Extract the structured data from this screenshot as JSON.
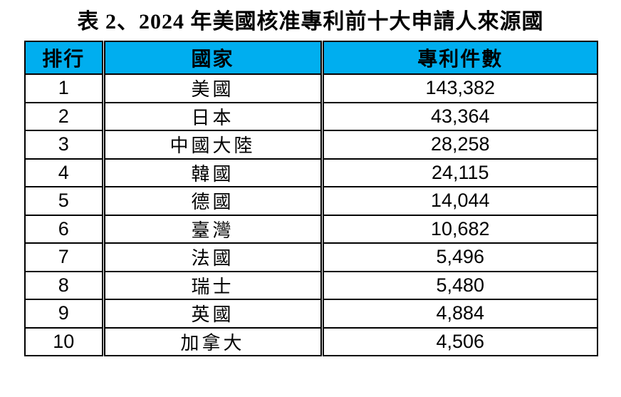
{
  "title": "表 2、2024 年美國核准專利前十大申請人來源國",
  "colors": {
    "header_bg": "#00AEEF",
    "border": "#000000",
    "text": "#000000"
  },
  "table": {
    "headers": {
      "rank": "排行",
      "country": "國家",
      "patents": "專利件數"
    },
    "rows": [
      {
        "rank": "1",
        "country": "美國",
        "patents": "143,382"
      },
      {
        "rank": "2",
        "country": "日本",
        "patents": "43,364"
      },
      {
        "rank": "3",
        "country": "中國大陸",
        "patents": "28,258"
      },
      {
        "rank": "4",
        "country": "韓國",
        "patents": "24,115"
      },
      {
        "rank": "5",
        "country": "德國",
        "patents": "14,044"
      },
      {
        "rank": "6",
        "country": "臺灣",
        "patents": "10,682"
      },
      {
        "rank": "7",
        "country": "法國",
        "patents": "5,496"
      },
      {
        "rank": "8",
        "country": "瑞士",
        "patents": "5,480"
      },
      {
        "rank": "9",
        "country": "英國",
        "patents": "4,884"
      },
      {
        "rank": "10",
        "country": "加拿大",
        "patents": "4,506"
      }
    ]
  }
}
